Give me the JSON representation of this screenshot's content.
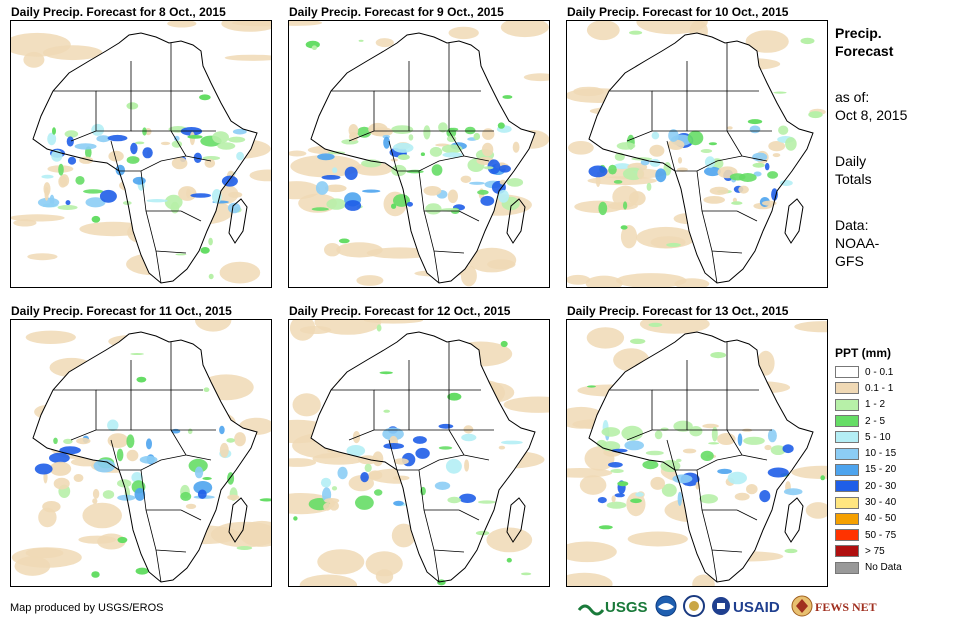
{
  "panels": [
    {
      "title": "Daily Precip. Forecast for 8 Oct., 2015",
      "intensity": 1.0
    },
    {
      "title": "Daily Precip. Forecast for 9 Oct., 2015",
      "intensity": 1.1
    },
    {
      "title": "Daily Precip. Forecast for 10 Oct., 2015",
      "intensity": 0.9
    },
    {
      "title": "Daily Precip. Forecast for 11 Oct., 2015",
      "intensity": 0.7
    },
    {
      "title": "Daily Precip. Forecast for 12 Oct., 2015",
      "intensity": 0.6
    },
    {
      "title": "Daily Precip. Forecast for 13 Oct., 2015",
      "intensity": 0.8
    }
  ],
  "side": {
    "title_line1": "Precip.",
    "title_line2": "Forecast",
    "asof_line1": "as of:",
    "asof_line2": "Oct 8, 2015",
    "totals_line1": "Daily",
    "totals_line2": "Totals",
    "data_line1": "Data:",
    "data_line2": "NOAA-",
    "data_line3": "GFS"
  },
  "legend": {
    "title": "PPT (mm)",
    "items": [
      {
        "label": "0 - 0.1",
        "color": "#ffffff"
      },
      {
        "label": "0.1 - 1",
        "color": "#f0d9b5"
      },
      {
        "label": "1 - 2",
        "color": "#b7f0a8"
      },
      {
        "label": "2 - 5",
        "color": "#66dd66"
      },
      {
        "label": "5 - 10",
        "color": "#b4eef5"
      },
      {
        "label": "10 - 15",
        "color": "#8ccdf5"
      },
      {
        "label": "15 - 20",
        "color": "#4ea4ee"
      },
      {
        "label": "20 - 30",
        "color": "#1f5ee8"
      },
      {
        "label": "30 - 40",
        "color": "#ffe680"
      },
      {
        "label": "40 - 50",
        "color": "#f5a000"
      },
      {
        "label": "50 - 75",
        "color": "#ff3300"
      },
      {
        "label": "> 75",
        "color": "#b01010"
      },
      {
        "label": "No Data",
        "color": "#999999"
      }
    ]
  },
  "credit": "Map produced by USGS/EROS",
  "logos": {
    "usgs": "USGS",
    "usaid": "USAID",
    "fewsnet": "FEWS NET"
  }
}
